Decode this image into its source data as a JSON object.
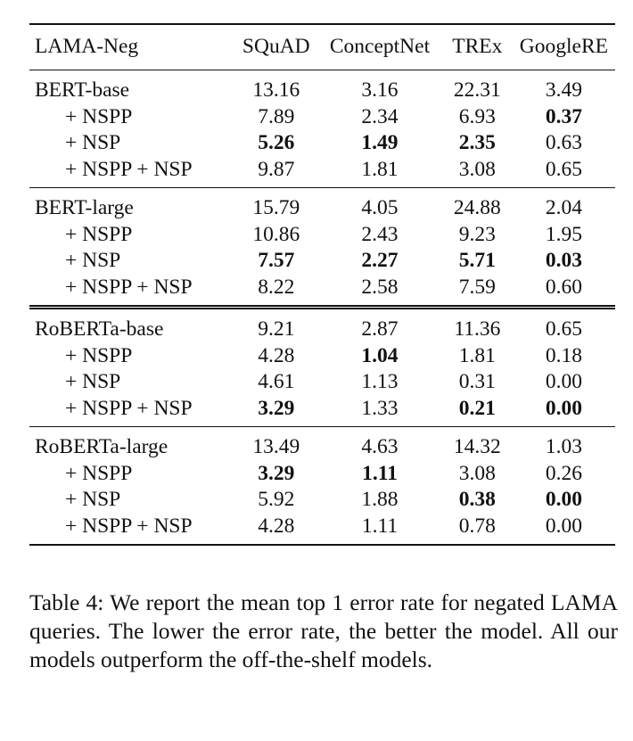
{
  "table": {
    "header": [
      "LAMA-Neg",
      "SQuAD",
      "ConceptNet",
      "TREx",
      "GoogleRE"
    ],
    "groups": [
      {
        "rows": [
          {
            "label": "BERT-base",
            "values": [
              "13.16",
              "3.16",
              "22.31",
              "3.49"
            ],
            "bold": [
              false,
              false,
              false,
              false
            ]
          },
          {
            "label": "+ NSPP",
            "values": [
              "7.89",
              "2.34",
              "6.93",
              "0.37"
            ],
            "bold": [
              false,
              false,
              false,
              true
            ]
          },
          {
            "label": "+ NSP",
            "values": [
              "5.26",
              "1.49",
              "2.35",
              "0.63"
            ],
            "bold": [
              true,
              true,
              true,
              false
            ]
          },
          {
            "label": "+ NSPP + NSP",
            "values": [
              "9.87",
              "1.81",
              "3.08",
              "0.65"
            ],
            "bold": [
              false,
              false,
              false,
              false
            ]
          }
        ]
      },
      {
        "rows": [
          {
            "label": "BERT-large",
            "values": [
              "15.79",
              "4.05",
              "24.88",
              "2.04"
            ],
            "bold": [
              false,
              false,
              false,
              false
            ]
          },
          {
            "label": "+ NSPP",
            "values": [
              "10.86",
              "2.43",
              "9.23",
              "1.95"
            ],
            "bold": [
              false,
              false,
              false,
              false
            ]
          },
          {
            "label": "+ NSP",
            "values": [
              "7.57",
              "2.27",
              "5.71",
              "0.03"
            ],
            "bold": [
              true,
              true,
              true,
              true
            ]
          },
          {
            "label": "+ NSPP + NSP",
            "values": [
              "8.22",
              "2.58",
              "7.59",
              "0.60"
            ],
            "bold": [
              false,
              false,
              false,
              false
            ]
          }
        ]
      },
      {
        "rows": [
          {
            "label": "RoBERTa-base",
            "values": [
              "9.21",
              "2.87",
              "11.36",
              "0.65"
            ],
            "bold": [
              false,
              false,
              false,
              false
            ]
          },
          {
            "label": "+ NSPP",
            "values": [
              "4.28",
              "1.04",
              "1.81",
              "0.18"
            ],
            "bold": [
              false,
              true,
              false,
              false
            ]
          },
          {
            "label": "+ NSP",
            "values": [
              "4.61",
              "1.13",
              "0.31",
              "0.00"
            ],
            "bold": [
              false,
              false,
              false,
              false
            ]
          },
          {
            "label": "+ NSPP + NSP",
            "values": [
              "3.29",
              "1.33",
              "0.21",
              "0.00"
            ],
            "bold": [
              true,
              false,
              true,
              true
            ]
          }
        ]
      },
      {
        "rows": [
          {
            "label": "RoBERTa-large",
            "values": [
              "13.49",
              "4.63",
              "14.32",
              "1.03"
            ],
            "bold": [
              false,
              false,
              false,
              false
            ]
          },
          {
            "label": "+ NSPP",
            "values": [
              "3.29",
              "1.11",
              "3.08",
              "0.26"
            ],
            "bold": [
              true,
              true,
              false,
              false
            ]
          },
          {
            "label": "+ NSP",
            "values": [
              "5.92",
              "1.88",
              "0.38",
              "0.00"
            ],
            "bold": [
              false,
              false,
              true,
              true
            ]
          },
          {
            "label": "+ NSPP + NSP",
            "values": [
              "4.28",
              "1.11",
              "0.78",
              "0.00"
            ],
            "bold": [
              false,
              false,
              false,
              false
            ]
          }
        ]
      }
    ]
  },
  "caption": "Table 4: We report the mean top 1 error rate for negated LAMA queries. The lower the error rate, the better the model. All our models outperform the off-the-shelf models."
}
